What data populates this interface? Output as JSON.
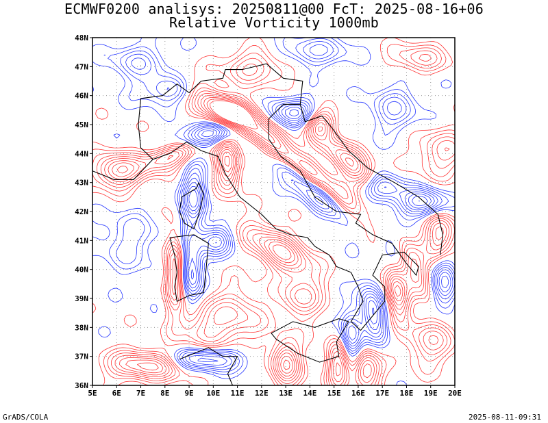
{
  "header": {
    "line1": "ECMWF0200 analisys: 20250811@00 FcT: 2025-08-16+06",
    "line2": "Relative Vorticity 1000mb"
  },
  "map": {
    "lon_range": [
      5,
      20
    ],
    "lat_range": [
      36,
      48
    ],
    "x_ticks": [
      "5E",
      "6E",
      "7E",
      "8E",
      "9E",
      "10E",
      "11E",
      "12E",
      "13E",
      "14E",
      "15E",
      "16E",
      "17E",
      "18E",
      "19E",
      "20E"
    ],
    "y_ticks": [
      "36N",
      "37N",
      "38N",
      "39N",
      "40N",
      "41N",
      "42N",
      "43N",
      "44N",
      "45N",
      "46N",
      "47N",
      "48N"
    ],
    "colors": {
      "positive": "#ff3333",
      "negative": "#2233ff",
      "coast": "#000000",
      "grid": "#999999"
    }
  },
  "footer": {
    "left": "GrADS/COLA",
    "right": "2025-08-11-09:31"
  }
}
